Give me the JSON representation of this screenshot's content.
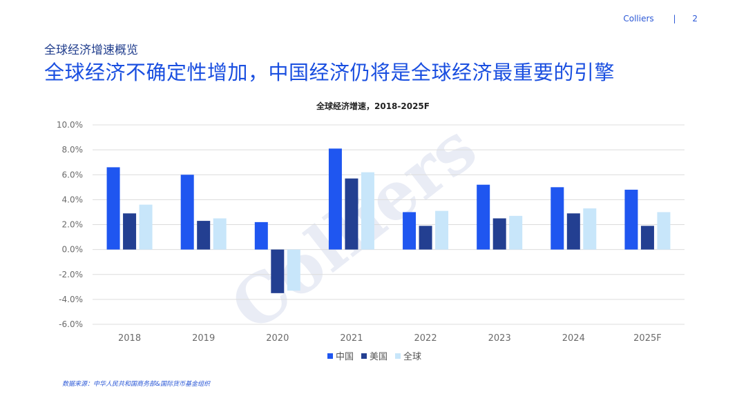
{
  "header": {
    "brand": "Colliers",
    "separator": "|",
    "page_number": "2",
    "subtitle": "全球经济增速概览",
    "title": "全球经济不确定性增加，中国经济仍将是全球经济最重要的引擎"
  },
  "watermark": "Colliers",
  "source": "数据来源：中华人民共和国商务部&国际货币基金组织",
  "colors": {
    "china": "#1f56f0",
    "usa": "#233f91",
    "global": "#c8e6fa",
    "grid": "#dcdcdc",
    "tick": "#6a6a6a"
  },
  "chart_data": {
    "type": "bar",
    "title": "全球经济增速，2018-2025F",
    "categories": [
      "2018",
      "2019",
      "2020",
      "2021",
      "2022",
      "2023",
      "2024",
      "2025F"
    ],
    "series": [
      {
        "name": "中国",
        "values": [
          6.6,
          6.0,
          2.2,
          8.1,
          3.0,
          5.2,
          5.0,
          4.8
        ]
      },
      {
        "name": "美国",
        "values": [
          2.9,
          2.3,
          -3.5,
          5.7,
          1.9,
          2.5,
          2.9,
          1.9
        ]
      },
      {
        "name": "全球",
        "values": [
          3.6,
          2.5,
          -3.3,
          6.2,
          3.1,
          2.7,
          3.3,
          3.0
        ]
      }
    ],
    "y_ticks": [
      "10.0%",
      "8.0%",
      "6.0%",
      "4.0%",
      "2.0%",
      "0.0%",
      "-2.0%",
      "-4.0%",
      "-6.0%"
    ],
    "ylim": [
      -6,
      10
    ],
    "grid": true,
    "legend_position": "bottom"
  }
}
